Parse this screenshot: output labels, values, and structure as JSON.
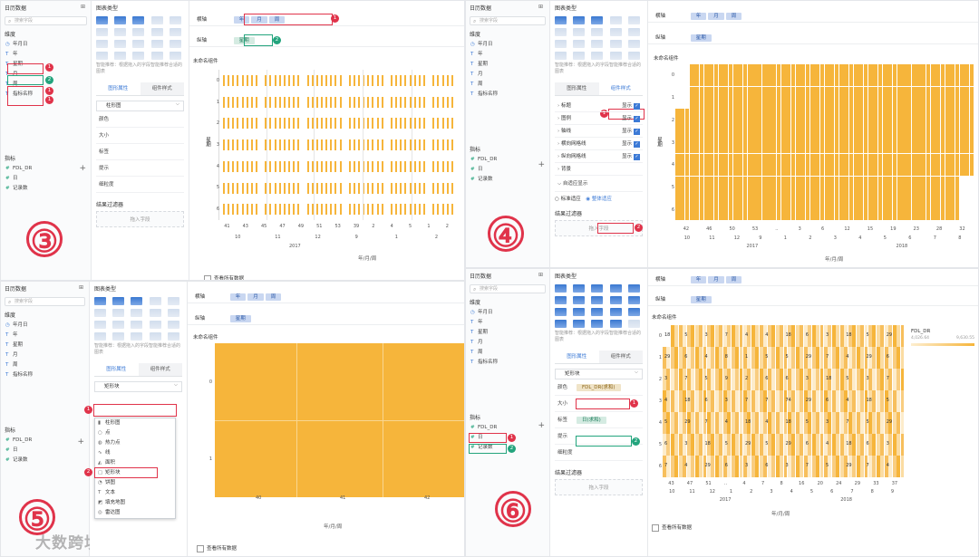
{
  "common": {
    "data_list_title": "日历数据",
    "search_placeholder": "搜索字段",
    "dimension_label": "维度",
    "indicator_label": "指标",
    "dims": [
      "年月日",
      "年",
      "星期",
      "月",
      "周",
      "指标名称"
    ],
    "indicators": [
      "FDL_DR",
      "日",
      "记录数"
    ],
    "chart_type_label": "图表类型",
    "smart_hint": "智能推荐：根据拖入的字段智能推荐合适的图表",
    "tab_graph": "图形属性",
    "tab_component": "组件样式",
    "bar_chart": "柱形图",
    "rect_block": "矩形块",
    "color": "颜色",
    "size": "大小",
    "label": "标签",
    "tooltip": "提示",
    "granularity": "细粒度",
    "result_filter": "结果过滤器",
    "drag_field": "拖入字段",
    "horizontal_axis": "横轴",
    "vertical_axis": "纵轴",
    "unnamed_component": "未命名组件",
    "view_all_data": "查看所有数据",
    "axis_chips": [
      "年",
      "月",
      "周"
    ],
    "week_chip": "星期",
    "x_axis_title": "年/月/周",
    "y_axis_title": "星期",
    "accent_color": "#3c7ad6",
    "mark_color": "#f6b53b",
    "highlight_red": "#e0334a",
    "highlight_green": "#23a47d"
  },
  "p3": {
    "step": "③",
    "weekday_ticks": [
      "0",
      "1",
      "2",
      "3",
      "4",
      "5",
      "6"
    ],
    "week_ticks": [
      "41",
      "43",
      "45",
      "47",
      "49",
      "51",
      "53",
      "39",
      "2",
      "4",
      "5",
      "1",
      "2"
    ],
    "month_ticks": [
      "10",
      "11",
      "12",
      "9",
      "1",
      "2"
    ],
    "year_tick": "2017"
  },
  "p4": {
    "step": "④",
    "style_items": [
      "标题",
      "图例",
      "轴线",
      "横向网格线",
      "纵向网格线",
      "背景"
    ],
    "show_label": "显示",
    "adaptive": "自适应显示",
    "standard_adaptive": "标准适应",
    "whole_adaptive": "整体适应",
    "weekday_ticks": [
      "0",
      "1",
      "2",
      "3",
      "4",
      "5",
      "6"
    ],
    "week_ticks": [
      "42",
      "46",
      "50",
      "53",
      "..",
      "3",
      "6",
      "12",
      "15",
      "19",
      "23",
      "28",
      "32"
    ],
    "month_ticks": [
      "10",
      "11",
      "12",
      "9",
      "1",
      "2",
      "3",
      "4",
      "5",
      "6",
      "7",
      "8"
    ],
    "year_ticks": [
      "2017",
      "2018"
    ]
  },
  "p5": {
    "step": "⑤",
    "menu_items": [
      "柱形图",
      "点",
      "热力点",
      "线",
      "面积",
      "矩形块",
      "饼图",
      "文本",
      "填充地图",
      "雷达图"
    ],
    "menu_icons": [
      "▮",
      "○",
      "◍",
      "∿",
      "◭",
      "▢",
      "◔",
      "T",
      "◩",
      "◎"
    ],
    "weekday_ticks": [
      "0",
      "1"
    ],
    "week_ticks": [
      "40",
      "41",
      "42"
    ]
  },
  "p6": {
    "step": "⑥",
    "color_chip": "FDL_DR(求和)",
    "label_chip": "日(求和)",
    "legend_title": "FDL_DR",
    "legend_min": "4,026.64",
    "legend_max": "9,630.55",
    "weekday_ticks": [
      "0",
      "1",
      "2",
      "3",
      "4",
      "5",
      "6"
    ],
    "week_ticks": [
      "43",
      "47",
      "51",
      "..",
      "4",
      "7",
      "8",
      "16",
      "20",
      "24",
      "29",
      "33",
      "37"
    ],
    "month_ticks": [
      "10",
      "11",
      "12",
      "1",
      "2",
      "3",
      "4",
      "5",
      "6",
      "7",
      "8",
      "9"
    ],
    "year_ticks": [
      "2017",
      "2018"
    ],
    "cell_labels": [
      [
        "18",
        "5",
        "3",
        "7",
        "4",
        "4",
        "18",
        "6",
        "3",
        "18",
        "5",
        "29"
      ],
      [
        "29",
        "6",
        "4",
        "8",
        "1",
        "5",
        "5",
        "29",
        "7",
        "4",
        "29",
        "6"
      ],
      [
        "3",
        "7",
        "5",
        "9",
        "2",
        "6",
        "6",
        "3",
        "18",
        "5",
        "3",
        "7"
      ],
      [
        "4",
        "18",
        "6",
        "3",
        "7",
        "7",
        "74",
        "29",
        "6",
        "4",
        "18",
        "5"
      ],
      [
        "5",
        "29",
        "7",
        "4",
        "18",
        "4",
        "18",
        "5",
        "3",
        "7",
        "5",
        "29"
      ],
      [
        "6",
        "3",
        "18",
        "5",
        "29",
        "5",
        "29",
        "6",
        "4",
        "18",
        "6",
        "3"
      ],
      [
        "7",
        "4",
        "29",
        "6",
        "3",
        "6",
        "3",
        "7",
        "5",
        "29",
        "7",
        "4"
      ]
    ]
  },
  "watermark": "大数跨境"
}
